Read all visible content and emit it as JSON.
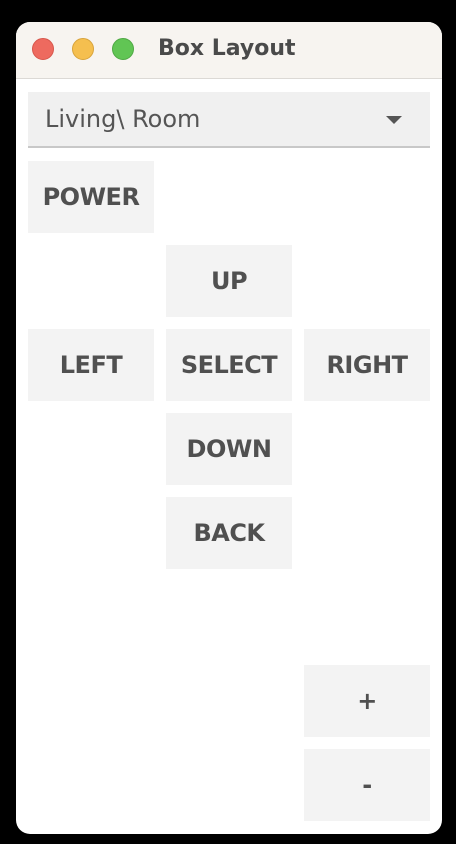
{
  "window": {
    "title": "Box Layout"
  },
  "room_select": {
    "value": "Living\\ Room"
  },
  "remote": {
    "power": "POWER",
    "up": "UP",
    "left": "LEFT",
    "select": "SELECT",
    "right": "RIGHT",
    "down": "DOWN",
    "back": "BACK",
    "volume_up": "+",
    "volume_down": "-"
  },
  "colors": {
    "button_bg": "#f3f3f3",
    "button_text": "#505050",
    "close": "#ee6a5f",
    "minimize": "#f5bf4f",
    "maximize": "#61c554"
  }
}
